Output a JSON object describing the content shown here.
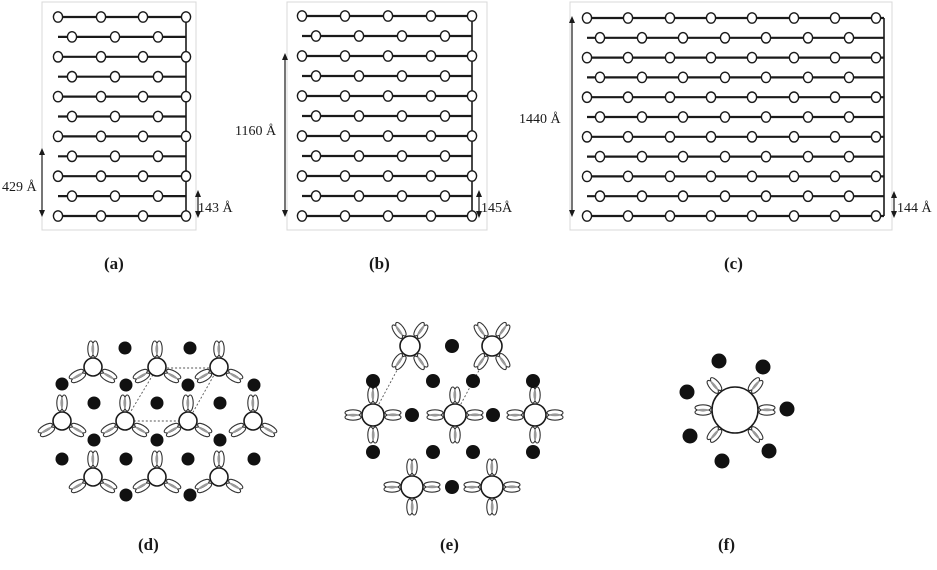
{
  "figure": {
    "panels": [
      {
        "id": "a",
        "label": "(a)",
        "dims": [
          "429 Å",
          "143 Å"
        ]
      },
      {
        "id": "b",
        "label": "(b)",
        "dims": [
          "1160 Å",
          "145Å"
        ]
      },
      {
        "id": "c",
        "label": "(c)",
        "dims": [
          "1440 Å",
          "144 Å"
        ]
      },
      {
        "id": "d",
        "label": "(d)"
      },
      {
        "id": "e",
        "label": "(e)"
      },
      {
        "id": "f",
        "label": "(f)"
      }
    ]
  }
}
